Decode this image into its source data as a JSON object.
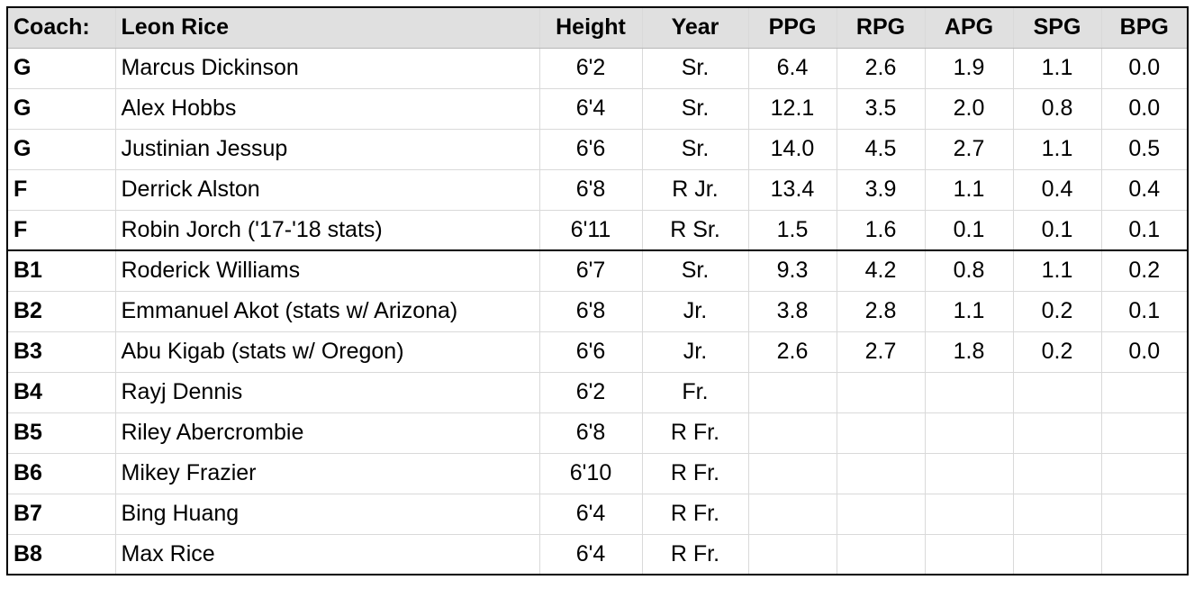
{
  "header": {
    "coach_label": "Coach:",
    "coach_name": "Leon Rice",
    "columns": [
      "Height",
      "Year",
      "PPG",
      "RPG",
      "APG",
      "SPG",
      "BPG"
    ]
  },
  "rows": [
    {
      "pos": "G",
      "name": "Marcus Dickinson",
      "height": "6'2",
      "year": "Sr.",
      "ppg": "6.4",
      "rpg": "2.6",
      "apg": "1.9",
      "spg": "1.1",
      "bpg": "0.0"
    },
    {
      "pos": "G",
      "name": "Alex Hobbs",
      "height": "6'4",
      "year": "Sr.",
      "ppg": "12.1",
      "rpg": "3.5",
      "apg": "2.0",
      "spg": "0.8",
      "bpg": "0.0"
    },
    {
      "pos": "G",
      "name": "Justinian Jessup",
      "height": "6'6",
      "year": "Sr.",
      "ppg": "14.0",
      "rpg": "4.5",
      "apg": "2.7",
      "spg": "1.1",
      "bpg": "0.5"
    },
    {
      "pos": "F",
      "name": "Derrick Alston",
      "height": "6'8",
      "year": "R Jr.",
      "ppg": "13.4",
      "rpg": "3.9",
      "apg": "1.1",
      "spg": "0.4",
      "bpg": "0.4"
    },
    {
      "pos": "F",
      "name": "Robin Jorch ('17-'18 stats)",
      "height": "6'11",
      "year": "R Sr.",
      "ppg": "1.5",
      "rpg": "1.6",
      "apg": "0.1",
      "spg": "0.1",
      "bpg": "0.1"
    },
    {
      "pos": "B1",
      "name": "Roderick Williams",
      "height": "6'7",
      "year": "Sr.",
      "ppg": "9.3",
      "rpg": "4.2",
      "apg": "0.8",
      "spg": "1.1",
      "bpg": "0.2"
    },
    {
      "pos": "B2",
      "name": "Emmanuel Akot (stats w/ Arizona)",
      "height": "6'8",
      "year": "Jr.",
      "ppg": "3.8",
      "rpg": "2.8",
      "apg": "1.1",
      "spg": "0.2",
      "bpg": "0.1"
    },
    {
      "pos": "B3",
      "name": "Abu Kigab (stats w/ Oregon)",
      "height": "6'6",
      "year": "Jr.",
      "ppg": "2.6",
      "rpg": "2.7",
      "apg": "1.8",
      "spg": "0.2",
      "bpg": "0.0"
    },
    {
      "pos": "B4",
      "name": "Rayj Dennis",
      "height": "6'2",
      "year": "Fr.",
      "ppg": "",
      "rpg": "",
      "apg": "",
      "spg": "",
      "bpg": ""
    },
    {
      "pos": "B5",
      "name": "Riley Abercrombie",
      "height": "6'8",
      "year": "R Fr.",
      "ppg": "",
      "rpg": "",
      "apg": "",
      "spg": "",
      "bpg": ""
    },
    {
      "pos": "B6",
      "name": "Mikey Frazier",
      "height": "6'10",
      "year": "R Fr.",
      "ppg": "",
      "rpg": "",
      "apg": "",
      "spg": "",
      "bpg": ""
    },
    {
      "pos": "B7",
      "name": "Bing Huang",
      "height": "6'4",
      "year": "R Fr.",
      "ppg": "",
      "rpg": "",
      "apg": "",
      "spg": "",
      "bpg": ""
    },
    {
      "pos": "B8",
      "name": "Max Rice",
      "height": "6'4",
      "year": "R Fr.",
      "ppg": "",
      "rpg": "",
      "apg": "",
      "spg": "",
      "bpg": ""
    }
  ]
}
